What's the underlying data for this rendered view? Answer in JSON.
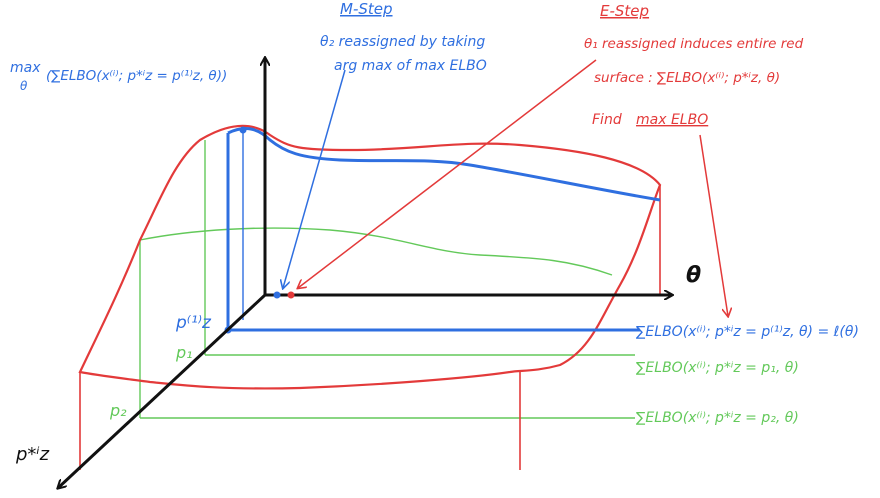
{
  "m_step": {
    "title": "M-Step",
    "line1": "θ₂ reassigned by taking",
    "line2": "arg max of max ELBO"
  },
  "e_step": {
    "title": "E-Step",
    "line1": "θ₁ reassigned induces entire red",
    "line2": "surface : ∑ELBO(x⁽ⁱ⁾; p*ⁱz, θ)",
    "line3": "Find",
    "line3b": "max ELBO"
  },
  "top_formula": {
    "max": "max",
    "theta": "θ",
    "expr": "(∑ELBO(x⁽ⁱ⁾; p*ⁱz = p⁽¹⁾z, θ))"
  },
  "axes": {
    "theta_label": "θ",
    "pz_label": "p*ⁱz"
  },
  "markers": {
    "pz1": "p⁽¹⁾z",
    "p1": "p₁",
    "p2": "p₂"
  },
  "right_formulas": {
    "blue": "∑ELBO(x⁽ⁱ⁾; p*ⁱz = p⁽¹⁾z, θ) = ℓ(θ)",
    "green1": "∑ELBO(x⁽ⁱ⁾; p*ⁱz = p₁, θ)",
    "green2": "∑ELBO(x⁽ⁱ⁾; p*ⁱz = p₂, θ)"
  },
  "colors": {
    "blue": "#2f6fe0",
    "red": "#e33a3a",
    "green": "#63c95a",
    "axis": "#111111"
  }
}
